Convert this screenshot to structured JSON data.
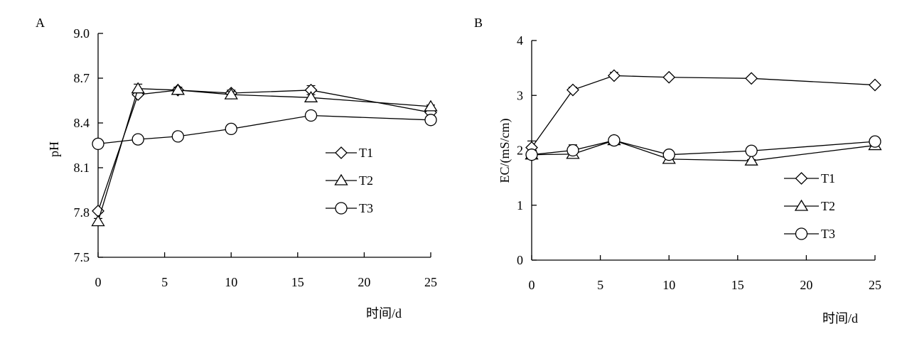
{
  "chart_data": [
    {
      "type": "line",
      "panel_label": "A",
      "ylabel": "pH",
      "xlabel": "时间/d",
      "xlim": [
        0,
        25
      ],
      "ylim": [
        7.5,
        9.0
      ],
      "x_ticks": [
        0,
        5,
        10,
        15,
        20,
        25
      ],
      "y_ticks": [
        "7.5",
        "7.8",
        "8.1",
        "8.4",
        "8.7",
        "9.0"
      ],
      "grid": false,
      "legend_position": "right",
      "x": [
        0,
        3,
        6,
        10,
        16,
        25
      ],
      "series": [
        {
          "name": "T1",
          "marker": "diamond",
          "values": [
            7.81,
            8.59,
            8.62,
            8.6,
            8.62,
            8.47
          ],
          "errors": [
            0.01,
            0.02,
            0.02,
            0.02,
            0.03,
            0.01
          ]
        },
        {
          "name": "T2",
          "marker": "triangle",
          "values": [
            7.74,
            8.63,
            8.62,
            8.59,
            8.57,
            8.51
          ],
          "errors": [
            0.02,
            0.03,
            0.02,
            0.02,
            0.02,
            0.01
          ]
        },
        {
          "name": "T3",
          "marker": "circle",
          "values": [
            8.26,
            8.29,
            8.31,
            8.36,
            8.45,
            8.42
          ],
          "errors": [
            0.01,
            0.01,
            0.02,
            0.01,
            0.01,
            0.01
          ]
        }
      ]
    },
    {
      "type": "line",
      "panel_label": "B",
      "ylabel": "EC/(mS/cm)",
      "xlabel": "时间/d",
      "xlim": [
        0,
        25
      ],
      "ylim": [
        0,
        4
      ],
      "x_ticks": [
        0,
        5,
        10,
        15,
        20,
        25
      ],
      "y_ticks": [
        "0",
        "1",
        "2",
        "3",
        "4"
      ],
      "grid": false,
      "legend_position": "right",
      "x": [
        0,
        3,
        6,
        10,
        16,
        25
      ],
      "series": [
        {
          "name": "T1",
          "marker": "diamond",
          "values": [
            2.05,
            3.1,
            3.36,
            3.33,
            3.31,
            3.19
          ],
          "errors": [
            0.12,
            0.05,
            0.06,
            0.02,
            0.02,
            0.02
          ]
        },
        {
          "name": "T2",
          "marker": "triangle",
          "values": [
            1.92,
            1.93,
            2.18,
            1.84,
            1.81,
            2.09
          ],
          "errors": [
            0.03,
            0.03,
            0.05,
            0.02,
            0.02,
            0.02
          ]
        },
        {
          "name": "T3",
          "marker": "circle",
          "values": [
            1.92,
            2.0,
            2.18,
            1.92,
            1.99,
            2.16
          ],
          "errors": [
            0.02,
            0.1,
            0.06,
            0.02,
            0.02,
            0.03
          ]
        }
      ]
    }
  ]
}
